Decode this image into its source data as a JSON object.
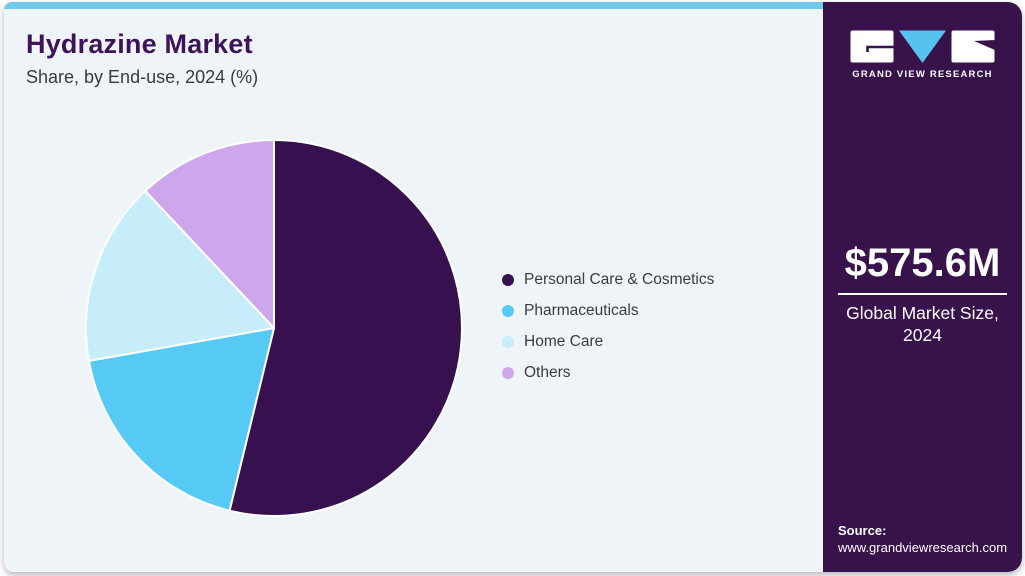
{
  "header": {
    "title": "Hydrazine Market",
    "subtitle": "Share, by End-use, 2024 (%)"
  },
  "chart_data": {
    "type": "pie",
    "title": "Hydrazine Market Share, by End-use, 2024 (%)",
    "legend_position": "right",
    "start_angle_deg": 0,
    "direction": "clockwise",
    "slices": [
      {
        "label": "Personal Care & Cosmetics",
        "value": 53.8,
        "color": "#371050"
      },
      {
        "label": "Pharmaceuticals",
        "value": 18.4,
        "color": "#56C9F4"
      },
      {
        "label": "Home Care",
        "value": 15.8,
        "color": "#C7ECFA"
      },
      {
        "label": "Others",
        "value": 12.0,
        "color": "#CDA6EC"
      }
    ]
  },
  "sidebar": {
    "logo_text": "GRAND VIEW RESEARCH",
    "market_size_value": "$575.6M",
    "market_size_label": "Global Market Size, 2024",
    "source_label": "Source:",
    "source_url": "www.grandviewresearch.com"
  },
  "colors": {
    "accent_bar": "#6EC9EC",
    "panel_bg": "#EFF4F9",
    "sidebar_bg": "#37124B",
    "title": "#3D145A",
    "logo_v": "#56C3EF"
  }
}
